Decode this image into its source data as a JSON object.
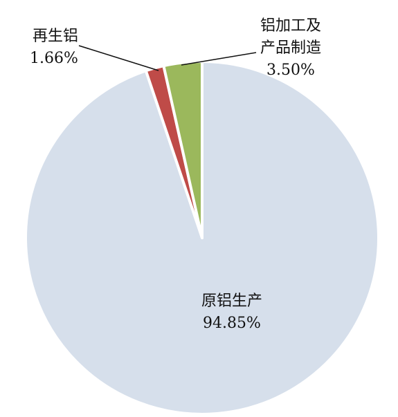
{
  "chart_data": {
    "type": "pie",
    "title": "",
    "slices": [
      {
        "label": "原铝生产",
        "value": 94.85,
        "value_label": "94.85%",
        "color": "#d6dfeb"
      },
      {
        "label": "再生铝",
        "value": 1.66,
        "value_label": "1.66%",
        "color": "#bf4b48"
      },
      {
        "label": "铝加工及产品制造",
        "label_lines": [
          "铝加工及",
          "产品制造"
        ],
        "value": 3.5,
        "value_label": "3.50%",
        "color": "#9bb85c"
      }
    ],
    "legend": "none"
  }
}
